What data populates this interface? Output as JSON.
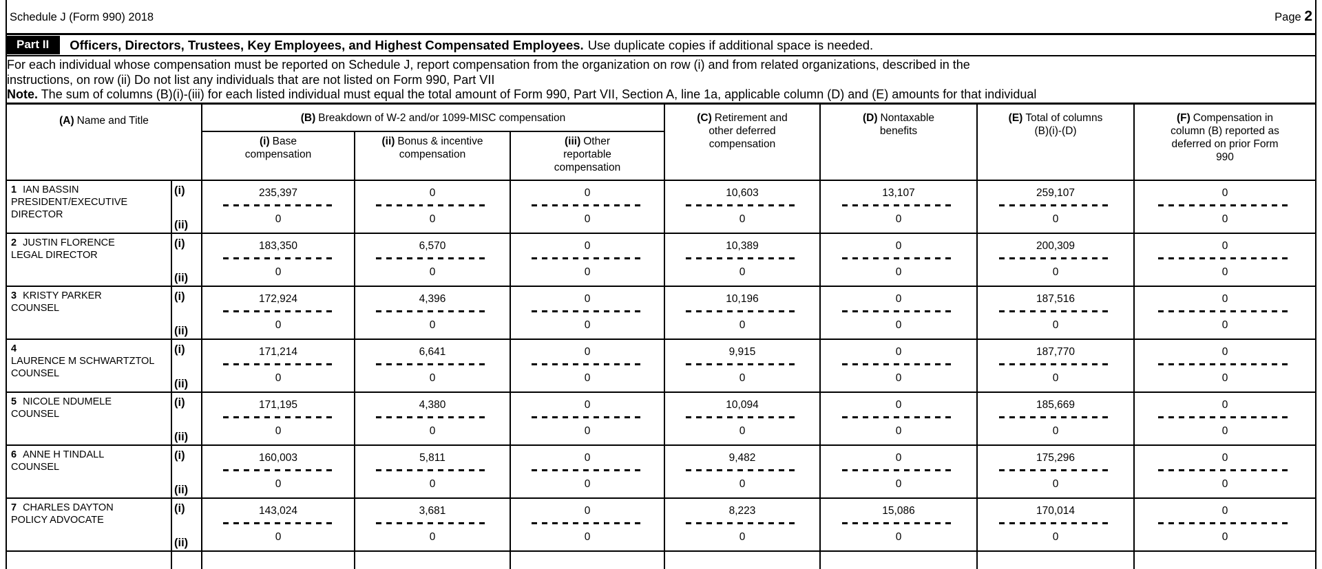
{
  "page": {
    "schedule_title": "Schedule J (Form 990) 2018",
    "page_label": "Page",
    "page_number": "2"
  },
  "part_header": {
    "part_label": "Part II",
    "title": "Officers, Directors, Trustees, Key Employees, and Highest Compensated Employees.",
    "subtitle": "Use duplicate copies if additional space is needed."
  },
  "instructions": {
    "line1": "For each individual whose compensation must be reported on Schedule J, report compensation from the organization on row (i) and from related organizations, described in the",
    "line2": "instructions, on row (ii)  Do not list any individuals that are not listed on Form 990, Part VII",
    "note_label": "Note.",
    "note_text": "The sum of columns (B)(i)-(iii) for each listed individual must equal the total amount of Form 990, Part VII, Section A, line 1a, applicable column (D) and (E) amounts for that individual"
  },
  "table": {
    "columns": {
      "a": {
        "letter": "(A)",
        "label": "Name and Title"
      },
      "b": {
        "letter": "(B)",
        "label": "Breakdown of W-2 and/or 1099-MISC compensation"
      },
      "b_i": {
        "letter": "(i)",
        "label": "Base compensation"
      },
      "b_ii": {
        "letter": "(ii)",
        "label": "Bonus & incentive compensation"
      },
      "b_iii": {
        "letter": "(iii)",
        "label": "Other reportable compensation"
      },
      "c": {
        "letter": "(C)",
        "label": "Retirement and other deferred compensation"
      },
      "d": {
        "letter": "(D)",
        "label": "Nontaxable benefits"
      },
      "e": {
        "letter": "(E)",
        "label": "Total of columns (B)(i)-(D)"
      },
      "f": {
        "letter": "(F)",
        "label": "Compensation in column (B) reported as deferred on prior Form 990"
      }
    },
    "row_labels": {
      "i": "(i)",
      "ii": "(ii)"
    },
    "rows": [
      {
        "num": "1",
        "name": "IAN BASSIN",
        "num_alone": false,
        "title_lines": [
          "PRESIDENT/EXECUTIVE",
          "DIRECTOR"
        ],
        "values_i": [
          "235,397",
          "0",
          "0",
          "10,603",
          "13,107",
          "259,107",
          "0"
        ],
        "values_ii": [
          "0",
          "0",
          "0",
          "0",
          "0",
          "0",
          "0"
        ]
      },
      {
        "num": "2",
        "name": "JUSTIN FLORENCE",
        "num_alone": false,
        "title_lines": [
          "LEGAL DIRECTOR"
        ],
        "values_i": [
          "183,350",
          "6,570",
          "0",
          "10,389",
          "0",
          "200,309",
          "0"
        ],
        "values_ii": [
          "0",
          "0",
          "0",
          "0",
          "0",
          "0",
          "0"
        ]
      },
      {
        "num": "3",
        "name": "KRISTY PARKER",
        "num_alone": false,
        "title_lines": [
          "COUNSEL"
        ],
        "values_i": [
          "172,924",
          "4,396",
          "0",
          "10,196",
          "0",
          "187,516",
          "0"
        ],
        "values_ii": [
          "0",
          "0",
          "0",
          "0",
          "0",
          "0",
          "0"
        ]
      },
      {
        "num": "4",
        "name": "LAURENCE M SCHWARTZTOL",
        "num_alone": true,
        "title_lines": [
          "COUNSEL"
        ],
        "values_i": [
          "171,214",
          "6,641",
          "0",
          "9,915",
          "0",
          "187,770",
          "0"
        ],
        "values_ii": [
          "0",
          "0",
          "0",
          "0",
          "0",
          "0",
          "0"
        ]
      },
      {
        "num": "5",
        "name": "NICOLE NDUMELE",
        "num_alone": false,
        "title_lines": [
          "COUNSEL"
        ],
        "values_i": [
          "171,195",
          "4,380",
          "0",
          "10,094",
          "0",
          "185,669",
          "0"
        ],
        "values_ii": [
          "0",
          "0",
          "0",
          "0",
          "0",
          "0",
          "0"
        ]
      },
      {
        "num": "6",
        "name": "ANNE H TINDALL",
        "num_alone": false,
        "title_lines": [
          "COUNSEL"
        ],
        "values_i": [
          "160,003",
          "5,811",
          "0",
          "9,482",
          "0",
          "175,296",
          "0"
        ],
        "values_ii": [
          "0",
          "0",
          "0",
          "0",
          "0",
          "0",
          "0"
        ]
      },
      {
        "num": "7",
        "name": "CHARLES DAYTON",
        "num_alone": false,
        "title_lines": [
          "POLICY ADVOCATE"
        ],
        "values_i": [
          "143,024",
          "3,681",
          "0",
          "8,223",
          "15,086",
          "170,014",
          "0"
        ],
        "values_ii": [
          "0",
          "0",
          "0",
          "0",
          "0",
          "0",
          "0"
        ]
      }
    ]
  }
}
